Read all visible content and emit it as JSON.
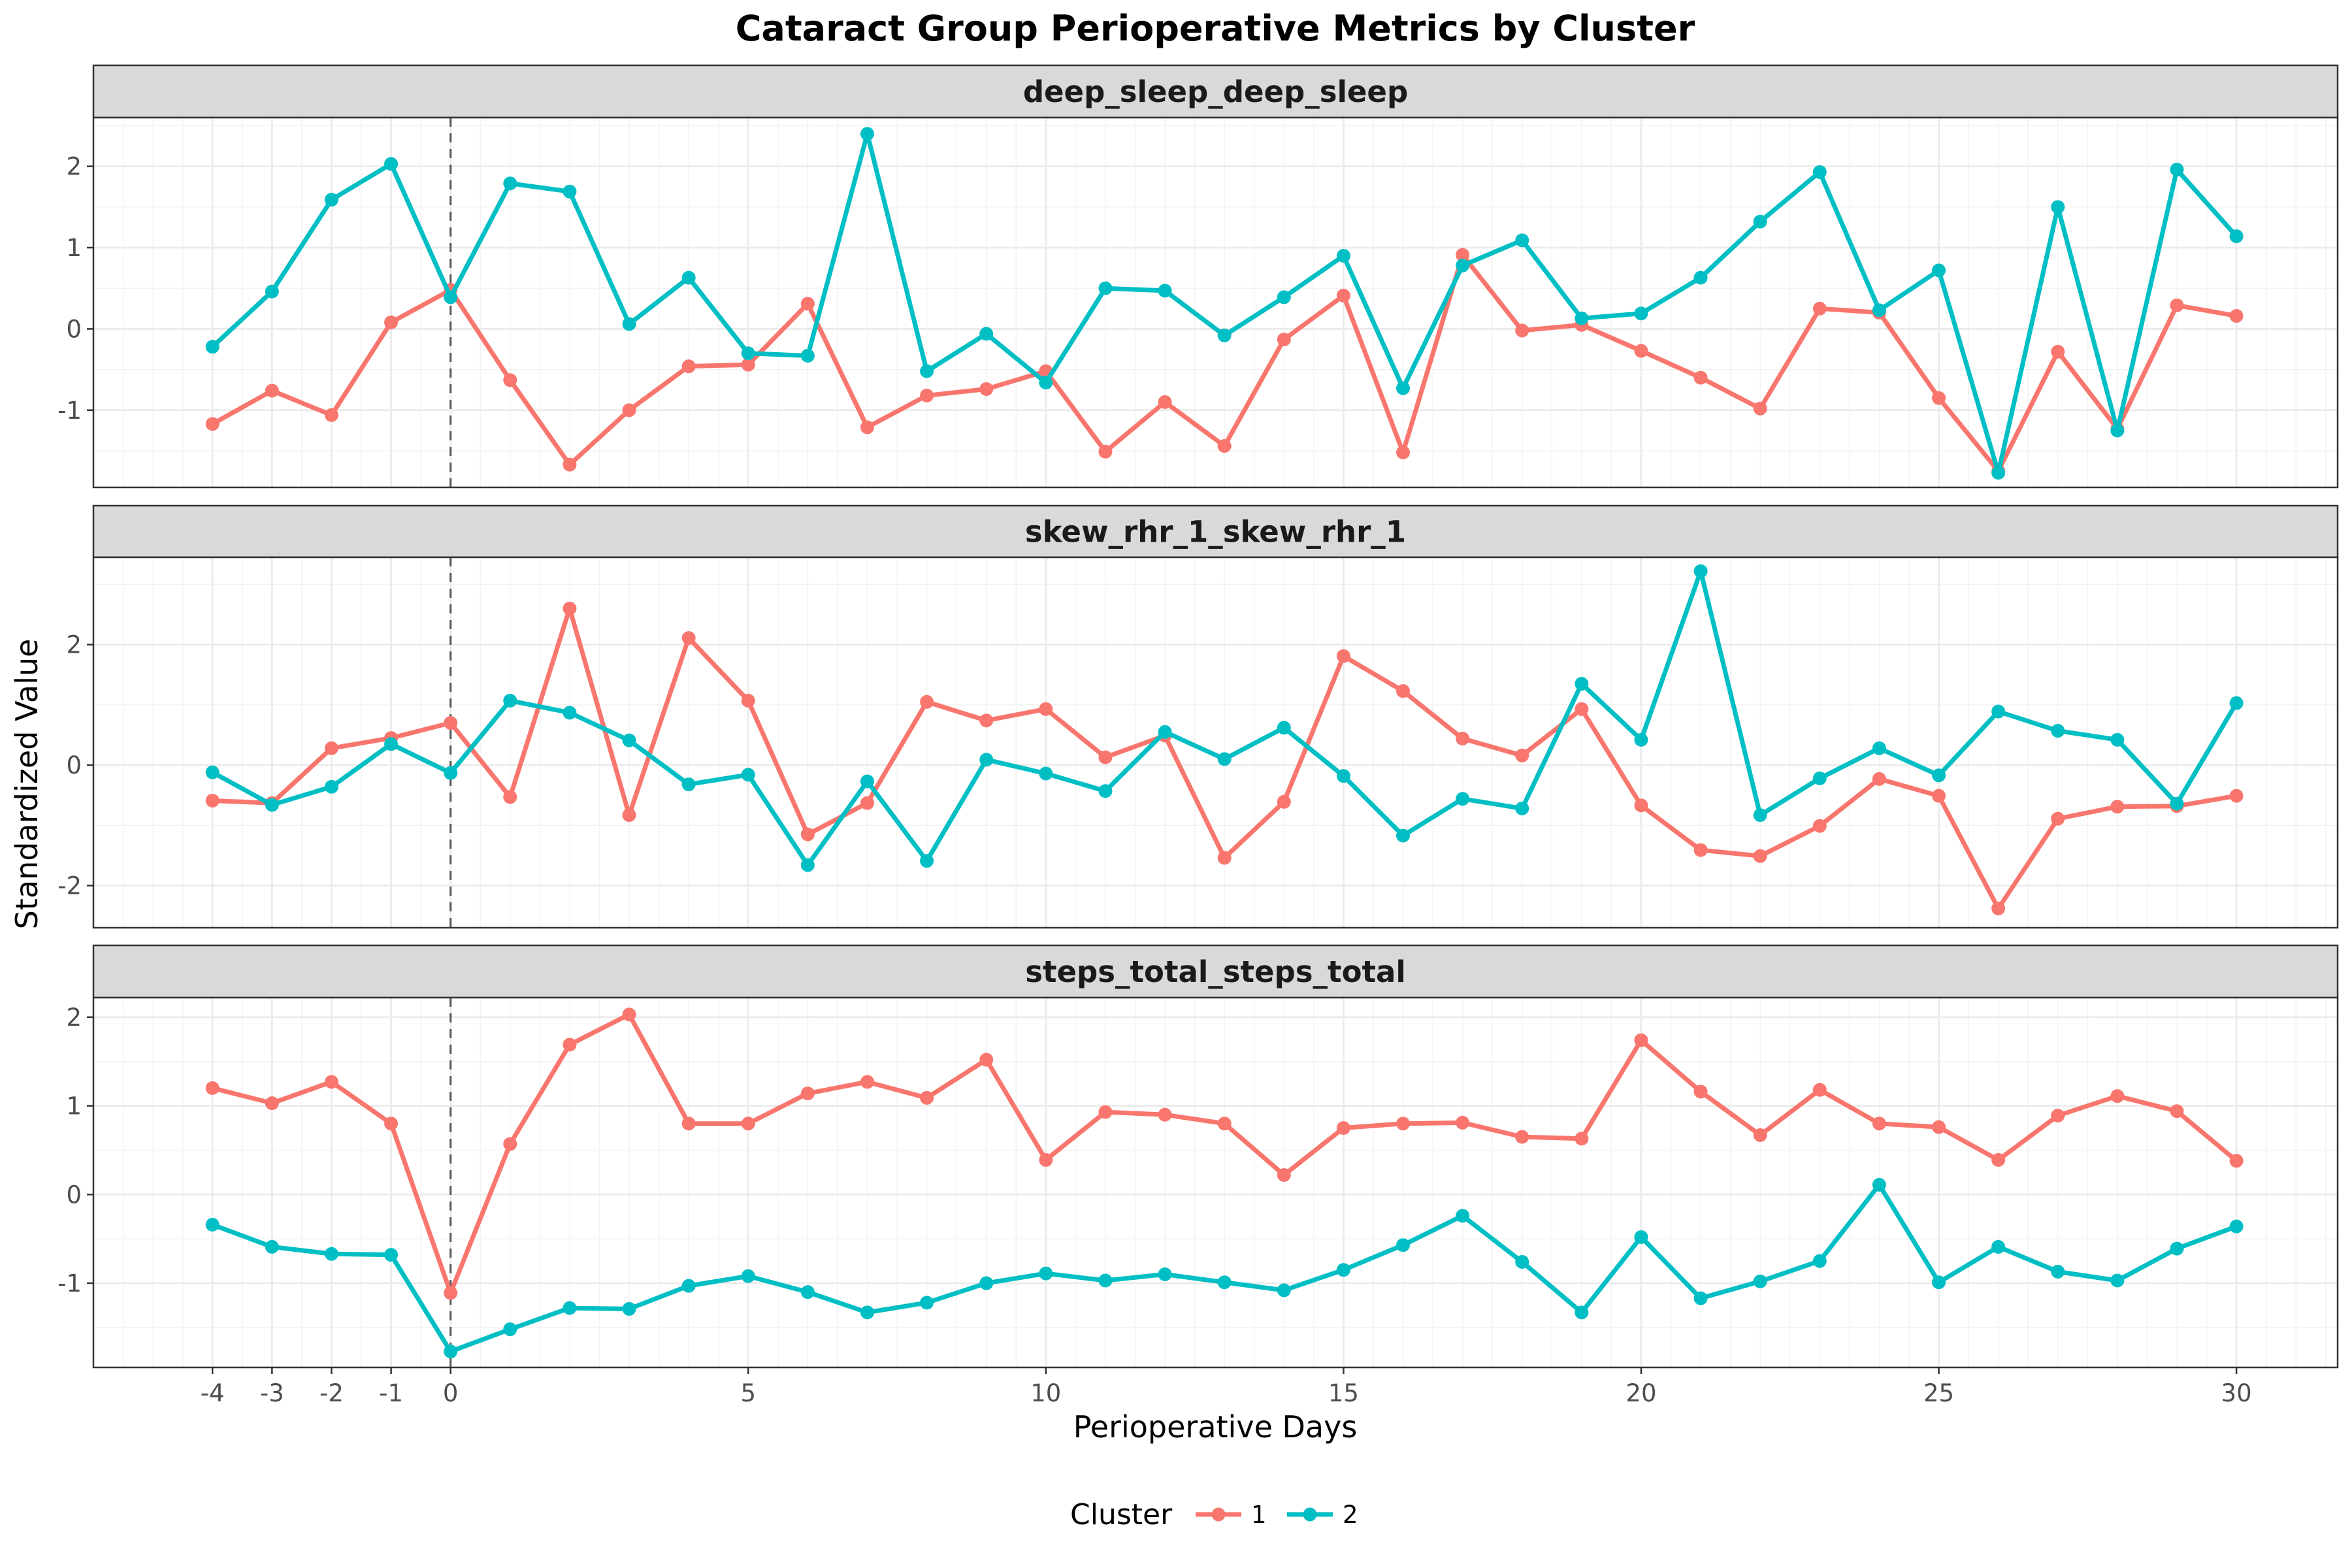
{
  "chart_data": {
    "type": "line",
    "title": "Cataract Group Perioperative Metrics by Cluster",
    "xlabel": "Perioperative Days",
    "ylabel": "Standardized Value",
    "x": [
      -4,
      -3,
      -2,
      -1,
      0,
      1,
      2,
      3,
      4,
      5,
      6,
      7,
      8,
      9,
      10,
      11,
      12,
      13,
      14,
      15,
      16,
      17,
      18,
      19,
      20,
      21,
      22,
      23,
      24,
      25,
      26,
      27,
      28,
      29,
      30
    ],
    "x_ticks": [
      -4,
      -3,
      -2,
      -1,
      0,
      5,
      10,
      15,
      20,
      25,
      30
    ],
    "x_tick_labels": [
      "-4",
      "-3",
      "-2",
      "-1",
      "0",
      "5",
      "10",
      "15",
      "20",
      "25",
      "30"
    ],
    "xlim": [
      -6.0,
      31.7
    ],
    "reference_line_x": 0,
    "grid": true,
    "legend": {
      "title": "Cluster",
      "placement": "bottom",
      "entries": [
        {
          "label": "1",
          "color": "#F8766D"
        },
        {
          "label": "2",
          "color": "#00BFC4"
        }
      ]
    },
    "facets": [
      {
        "name": "deep_sleep_deep_sleep",
        "ylim": [
          -1.95,
          2.6
        ],
        "y_ticks": [
          -1,
          0,
          1,
          2
        ],
        "y_tick_labels": [
          "-1",
          "0",
          "1",
          "2"
        ],
        "series": [
          {
            "name": "1",
            "color": "#F8766D",
            "values": [
              -1.17,
              -0.76,
              -1.06,
              0.08,
              0.48,
              -0.63,
              -1.67,
              -1.0,
              -0.46,
              -0.44,
              0.31,
              -1.21,
              -0.82,
              -0.74,
              -0.52,
              -1.51,
              -0.9,
              -1.44,
              -0.13,
              0.41,
              -1.52,
              0.91,
              -0.02,
              0.05,
              -0.27,
              -0.6,
              -0.98,
              0.25,
              0.2,
              -0.85,
              -1.75,
              -0.28,
              -1.23,
              0.29,
              0.16
            ]
          },
          {
            "name": "2",
            "color": "#00BFC4",
            "values": [
              -0.22,
              0.46,
              1.59,
              2.03,
              0.39,
              1.79,
              1.69,
              0.06,
              0.63,
              -0.3,
              -0.33,
              2.4,
              -0.52,
              -0.06,
              -0.66,
              0.5,
              0.47,
              -0.08,
              0.39,
              0.9,
              -0.73,
              0.78,
              1.09,
              0.13,
              0.19,
              0.63,
              1.32,
              1.93,
              0.23,
              0.72,
              -1.77,
              1.5,
              -1.25,
              1.96,
              1.14
            ]
          }
        ]
      },
      {
        "name": "skew_rhr_1_skew_rhr_1",
        "ylim": [
          -2.7,
          3.45
        ],
        "y_ticks": [
          -2,
          0,
          2
        ],
        "y_tick_labels": [
          "-2",
          "0",
          "2"
        ],
        "series": [
          {
            "name": "1",
            "color": "#F8766D",
            "values": [
              -0.59,
              -0.63,
              0.28,
              0.45,
              0.7,
              -0.53,
              2.6,
              -0.83,
              2.11,
              1.07,
              -1.15,
              -0.63,
              1.05,
              0.74,
              0.93,
              0.13,
              0.49,
              -1.54,
              -0.61,
              1.81,
              1.23,
              0.44,
              0.16,
              0.93,
              -0.67,
              -1.41,
              -1.51,
              -1.01,
              -0.23,
              -0.51,
              -2.38,
              -0.89,
              -0.69,
              -0.68,
              -0.51
            ]
          },
          {
            "name": "2",
            "color": "#00BFC4",
            "values": [
              -0.12,
              -0.66,
              -0.36,
              0.35,
              -0.13,
              1.07,
              0.87,
              0.41,
              -0.32,
              -0.16,
              -1.66,
              -0.27,
              -1.59,
              0.09,
              -0.14,
              -0.43,
              0.55,
              0.1,
              0.62,
              -0.18,
              -1.17,
              -0.56,
              -0.72,
              1.35,
              0.42,
              3.22,
              -0.83,
              -0.22,
              0.28,
              -0.17,
              0.89,
              0.57,
              0.42,
              -0.64,
              1.03
            ]
          }
        ]
      },
      {
        "name": "steps_total_steps_total",
        "ylim": [
          -1.95,
          2.22
        ],
        "y_ticks": [
          -1,
          0,
          1,
          2
        ],
        "y_tick_labels": [
          "-1",
          "0",
          "1",
          "2"
        ],
        "series": [
          {
            "name": "1",
            "color": "#F8766D",
            "values": [
              1.2,
              1.03,
              1.27,
              0.8,
              -1.11,
              0.57,
              1.69,
              2.03,
              0.8,
              0.8,
              1.14,
              1.27,
              1.09,
              1.52,
              0.39,
              0.93,
              0.9,
              0.8,
              0.22,
              0.75,
              0.8,
              0.81,
              0.65,
              0.63,
              1.74,
              1.16,
              0.67,
              1.18,
              0.8,
              0.76,
              0.39,
              0.89,
              1.11,
              0.94,
              0.38
            ]
          },
          {
            "name": "2",
            "color": "#00BFC4",
            "values": [
              -0.34,
              -0.59,
              -0.67,
              -0.68,
              -1.77,
              -1.52,
              -1.28,
              -1.29,
              -1.03,
              -0.92,
              -1.1,
              -1.33,
              -1.22,
              -1.0,
              -0.89,
              -0.97,
              -0.9,
              -0.99,
              -1.08,
              -0.85,
              -0.57,
              -0.24,
              -0.76,
              -1.33,
              -0.48,
              -1.17,
              -0.98,
              -0.75,
              0.11,
              -0.99,
              -0.59,
              -0.87,
              -0.97,
              -0.61,
              -0.36
            ]
          }
        ]
      }
    ]
  }
}
